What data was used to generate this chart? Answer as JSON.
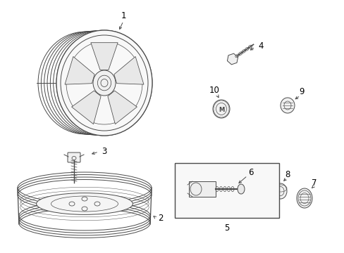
{
  "bg_color": "#ffffff",
  "line_color": "#4a4a4a",
  "label_color": "#000000",
  "figsize": [
    4.89,
    3.6
  ],
  "dpi": 100
}
